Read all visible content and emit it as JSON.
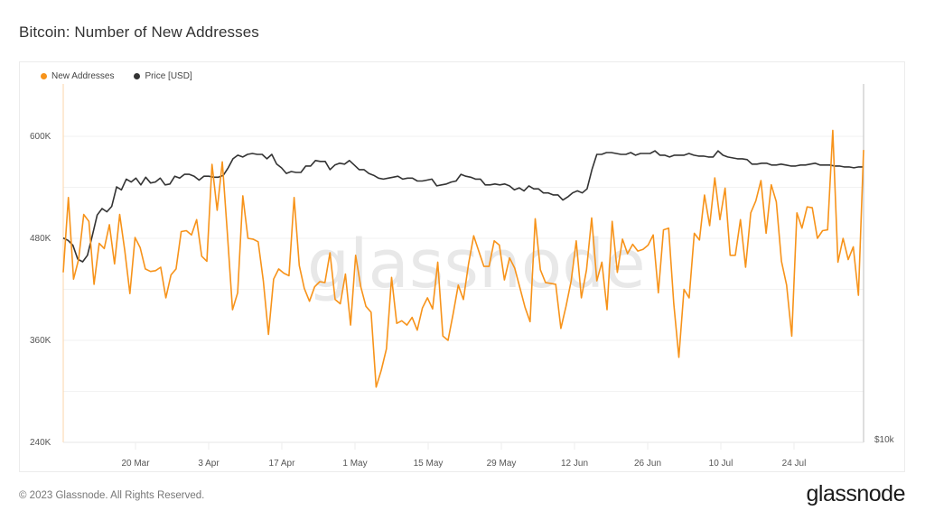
{
  "title": "Bitcoin: Number of New Addresses",
  "legend": {
    "items": [
      {
        "label": "New Addresses",
        "color": "#f7931a"
      },
      {
        "label": "Price [USD]",
        "color": "#333333"
      }
    ]
  },
  "footer": {
    "copyright": "© 2023 Glassnode. All Rights Reserved.",
    "logo": "glassnode"
  },
  "watermark": "glassnode",
  "chart_data": {
    "type": "line",
    "title": "Bitcoin: Number of New Addresses",
    "xlabel": "",
    "ylabel": "",
    "ylim": [
      240000,
      640000
    ],
    "y_ticks": [
      "240K",
      "360K",
      "480K",
      "600K"
    ],
    "y_tick_values": [
      240000,
      360000,
      480000,
      600000
    ],
    "y2_ticks": [
      "$10k"
    ],
    "x_ticks": [
      "20 Mar",
      "3 Apr",
      "17 Apr",
      "1 May",
      "15 May",
      "29 May",
      "12 Jun",
      "26 Jun",
      "10 Jul",
      "24 Jul"
    ],
    "x_range": [
      "6 Mar",
      "6 Aug"
    ],
    "grid": true,
    "legend_position": "top-left",
    "series": [
      {
        "name": "New Addresses",
        "color": "#f7931a",
        "axis": "left",
        "values": [
          440,
          528,
          432,
          455,
          508,
          500,
          426,
          474,
          468,
          496,
          450,
          508,
          465,
          415,
          481,
          469,
          444,
          441,
          442,
          446,
          410,
          437,
          444,
          488,
          489,
          484,
          502,
          459,
          453,
          567,
          513,
          570,
          486,
          396,
          416,
          530,
          480,
          479,
          476,
          430,
          367,
          432,
          444,
          439,
          436,
          528,
          448,
          421,
          406,
          423,
          429,
          428,
          463,
          408,
          403,
          438,
          378,
          460,
          423,
          400,
          393,
          305,
          325,
          350,
          434,
          380,
          383,
          378,
          387,
          372,
          398,
          410,
          397,
          452,
          365,
          360,
          391,
          425,
          408,
          450,
          483,
          465,
          447,
          447,
          477,
          472,
          431,
          457,
          445,
          422,
          399,
          382,
          503,
          443,
          428,
          427,
          426,
          374,
          400,
          430,
          477,
          410,
          443,
          504,
          430,
          452,
          396,
          500,
          440,
          479,
          462,
          473,
          465,
          467,
          472,
          484,
          416,
          490,
          492,
          403,
          340,
          420,
          410,
          486,
          478,
          531,
          495,
          551,
          502,
          539,
          460,
          460,
          502,
          446,
          510,
          524,
          548,
          486,
          543,
          523,
          453,
          425,
          365,
          510,
          492,
          517,
          516,
          480,
          489,
          490,
          607,
          452,
          480,
          455,
          470,
          413,
          584
        ]
      },
      {
        "name": "Price [USD]",
        "color": "#333333",
        "axis": "right",
        "values": [
          22200,
          22000,
          21600,
          20500,
          20300,
          20800,
          22400,
          24200,
          24800,
          24500,
          25000,
          26900,
          26600,
          27700,
          27400,
          27800,
          27100,
          27900,
          27300,
          27400,
          27800,
          27100,
          27200,
          28000,
          27800,
          28200,
          28200,
          28000,
          27600,
          28000,
          28000,
          27900,
          27900,
          28100,
          28900,
          29900,
          30300,
          30100,
          30400,
          30500,
          30400,
          30400,
          29900,
          30400,
          29300,
          28900,
          28300,
          28500,
          28400,
          28400,
          29100,
          29100,
          29700,
          29600,
          29600,
          28700,
          29200,
          29400,
          29300,
          29700,
          29200,
          28700,
          28700,
          28300,
          28100,
          27800,
          27700,
          27800,
          27900,
          28000,
          27700,
          27800,
          27800,
          27500,
          27500,
          27600,
          27700,
          27000,
          27100,
          27200,
          27400,
          27500,
          28200,
          28000,
          27900,
          27700,
          27700,
          27100,
          27100,
          27200,
          27100,
          27200,
          27000,
          26600,
          26800,
          26500,
          27000,
          26700,
          26700,
          26300,
          26300,
          26100,
          26100,
          25600,
          25900,
          26300,
          26500,
          26300,
          26700,
          28700,
          30400,
          30400,
          30600,
          30600,
          30500,
          30400,
          30400,
          30600,
          30300,
          30500,
          30500,
          30500,
          30800,
          30300,
          30300,
          30100,
          30300,
          30300,
          30300,
          30500,
          30300,
          30200,
          30200,
          30100,
          30100,
          30800,
          30300,
          30100,
          30000,
          29900,
          29900,
          29800,
          29300,
          29300,
          29400,
          29400,
          29200,
          29200,
          29300,
          29200,
          29100,
          29100,
          29200,
          29200,
          29300,
          29400,
          29200,
          29200,
          29200,
          29100,
          29100,
          29000,
          29000,
          28900,
          29000,
          29000
        ]
      }
    ]
  }
}
